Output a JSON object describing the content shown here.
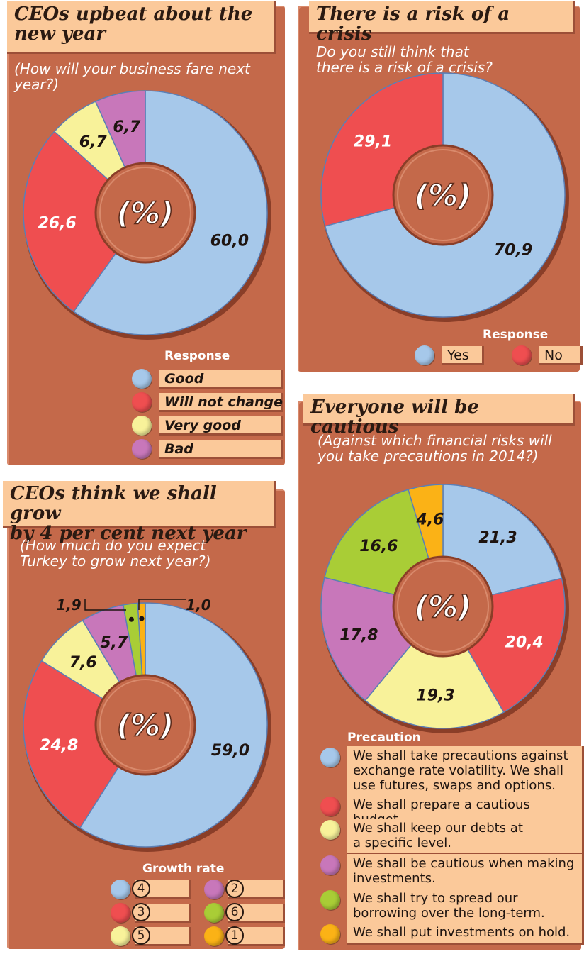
{
  "colors": {
    "blue": "#a6c8ea",
    "red": "#ef4e50",
    "yellow": "#f8f29a",
    "purple": "#c877ba",
    "green": "#a9cd36",
    "orange": "#fbb216"
  },
  "chart_data": [
    {
      "type": "pie",
      "title": "CEOs upbeat about the new year",
      "subtitle": "(How will your business fare next year?)",
      "center_label": "(%)",
      "legend_title": "Response",
      "series": [
        {
          "name": "Good",
          "value": 60.0,
          "label": "60,0",
          "color": "#a6c8ea"
        },
        {
          "name": "Will not change",
          "value": 26.6,
          "label": "26,6",
          "color": "#ef4e50"
        },
        {
          "name": "Very good",
          "value": 6.7,
          "label": "6,7",
          "color": "#f8f29a"
        },
        {
          "name": "Bad",
          "value": 6.7,
          "label": "6,7",
          "color": "#c877ba"
        }
      ]
    },
    {
      "type": "pie",
      "title": "There is a risk of a crisis",
      "subtitle": "Do you still think that\nthere is a risk of a crisis?",
      "center_label": "(%)",
      "legend_title": "Response",
      "series": [
        {
          "name": "Yes",
          "value": 70.9,
          "label": "70,9",
          "color": "#a6c8ea"
        },
        {
          "name": "No",
          "value": 29.1,
          "label": "29,1",
          "color": "#ef4e50"
        }
      ]
    },
    {
      "type": "pie",
      "title": "CEOs think we shall grow\nby 4 per cent next year",
      "subtitle": "(How much do you expect\nTurkey to grow next year?)",
      "center_label": "(%)",
      "legend_title": "Growth rate",
      "series": [
        {
          "name": "4",
          "value": 59.0,
          "label": "59,0",
          "color": "#a6c8ea"
        },
        {
          "name": "3",
          "value": 24.8,
          "label": "24,8",
          "color": "#ef4e50"
        },
        {
          "name": "5",
          "value": 7.6,
          "label": "7,6",
          "color": "#f8f29a"
        },
        {
          "name": "2",
          "value": 5.7,
          "label": "5,7",
          "color": "#c877ba"
        },
        {
          "name": "6",
          "value": 1.9,
          "label": "1,9",
          "color": "#a9cd36"
        },
        {
          "name": "1",
          "value": 1.0,
          "label": "1,0",
          "color": "#fbb216"
        }
      ]
    },
    {
      "type": "pie",
      "title": "Everyone will be cautious",
      "subtitle": "(Against which financial risks will\nyou take precautions in 2014?)",
      "center_label": "(%)",
      "legend_title": "Precaution",
      "series": [
        {
          "name": "We shall take precautions against\nexchange rate volatility. We shall\nuse futures, swaps and options.",
          "value": 21.3,
          "label": "21,3",
          "color": "#a6c8ea"
        },
        {
          "name": "We shall prepare a cautious budget.",
          "value": 20.4,
          "label": "20,4",
          "color": "#ef4e50"
        },
        {
          "name": "We shall keep our debts at\na specific level.",
          "value": 19.3,
          "label": "19,3",
          "color": "#f8f29a"
        },
        {
          "name": "We shall be cautious when making\ninvestments.",
          "value": 17.8,
          "label": "17,8",
          "color": "#c877ba"
        },
        {
          "name": "We shall try to spread our\nborrowing over the long-term.",
          "value": 16.6,
          "label": "16,6",
          "color": "#a9cd36"
        },
        {
          "name": "We shall put investments on hold.",
          "value": 4.6,
          "label": "4,6",
          "color": "#fbb216"
        }
      ]
    }
  ]
}
